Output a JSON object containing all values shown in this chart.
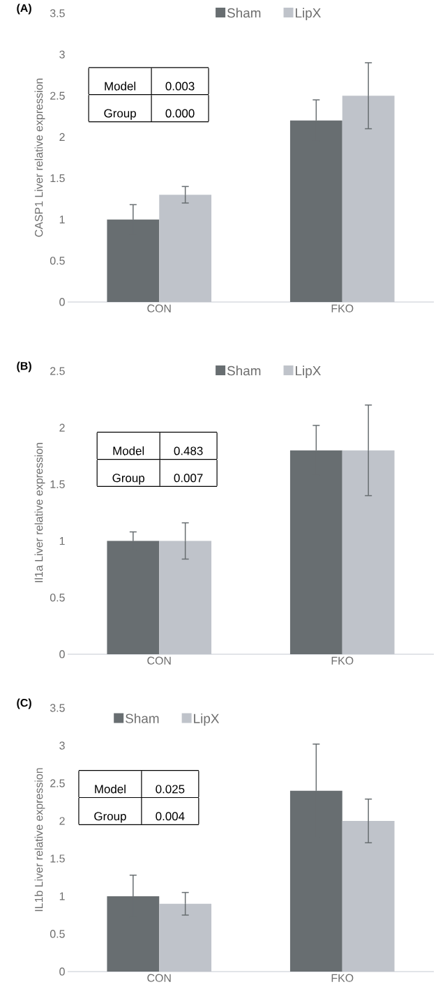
{
  "chart_data": [
    {
      "type": "bar",
      "title": "(A)",
      "ylabel": "CASP1 Liver relative expression",
      "categories": [
        "CON",
        "FKO"
      ],
      "series": [
        {
          "name": "Sham",
          "color": "#686e71",
          "values": [
            1.0,
            2.2
          ],
          "errors": [
            0.18,
            0.25
          ]
        },
        {
          "name": "LipX",
          "color": "#bfc3ca",
          "values": [
            1.3,
            2.5
          ],
          "errors": [
            0.1,
            0.4
          ]
        }
      ],
      "ylim": [
        0,
        3.5
      ],
      "yticks": [
        0,
        0.5,
        1,
        1.5,
        2,
        2.5,
        3,
        3.5
      ],
      "legend": "top",
      "annotations": [
        "Model",
        "0.003",
        "Group",
        "0.000"
      ]
    },
    {
      "type": "bar",
      "title": "(B)",
      "ylabel": "Il1a Liver relative expression",
      "categories": [
        "CON",
        "FKO"
      ],
      "series": [
        {
          "name": "Sham",
          "color": "#686e71",
          "values": [
            1.0,
            1.8
          ],
          "errors": [
            0.08,
            0.22
          ]
        },
        {
          "name": "LipX",
          "color": "#bfc3ca",
          "values": [
            1.0,
            1.8
          ],
          "errors": [
            0.16,
            0.4
          ]
        }
      ],
      "ylim": [
        0,
        2.5
      ],
      "yticks": [
        0,
        0.5,
        1,
        1.5,
        2,
        2.5
      ],
      "legend": "top",
      "annotations": [
        "Model",
        "0.483",
        "Group",
        "0.007"
      ]
    },
    {
      "type": "bar",
      "title": "(C)",
      "ylabel": "IL1b Liver relative expression",
      "categories": [
        "CON",
        "FKO"
      ],
      "series": [
        {
          "name": "Sham",
          "color": "#686e71",
          "values": [
            1.0,
            2.4
          ],
          "errors": [
            0.28,
            0.62
          ]
        },
        {
          "name": "LipX",
          "color": "#bfc3ca",
          "values": [
            0.9,
            2.0
          ],
          "errors": [
            0.15,
            0.29
          ]
        }
      ],
      "ylim": [
        0,
        3.5
      ],
      "yticks": [
        0,
        0.5,
        1,
        1.5,
        2,
        2.5,
        3,
        3.5
      ],
      "legend": "top left",
      "annotations": [
        "Model",
        "0.025",
        "Group",
        "0.004"
      ]
    }
  ]
}
